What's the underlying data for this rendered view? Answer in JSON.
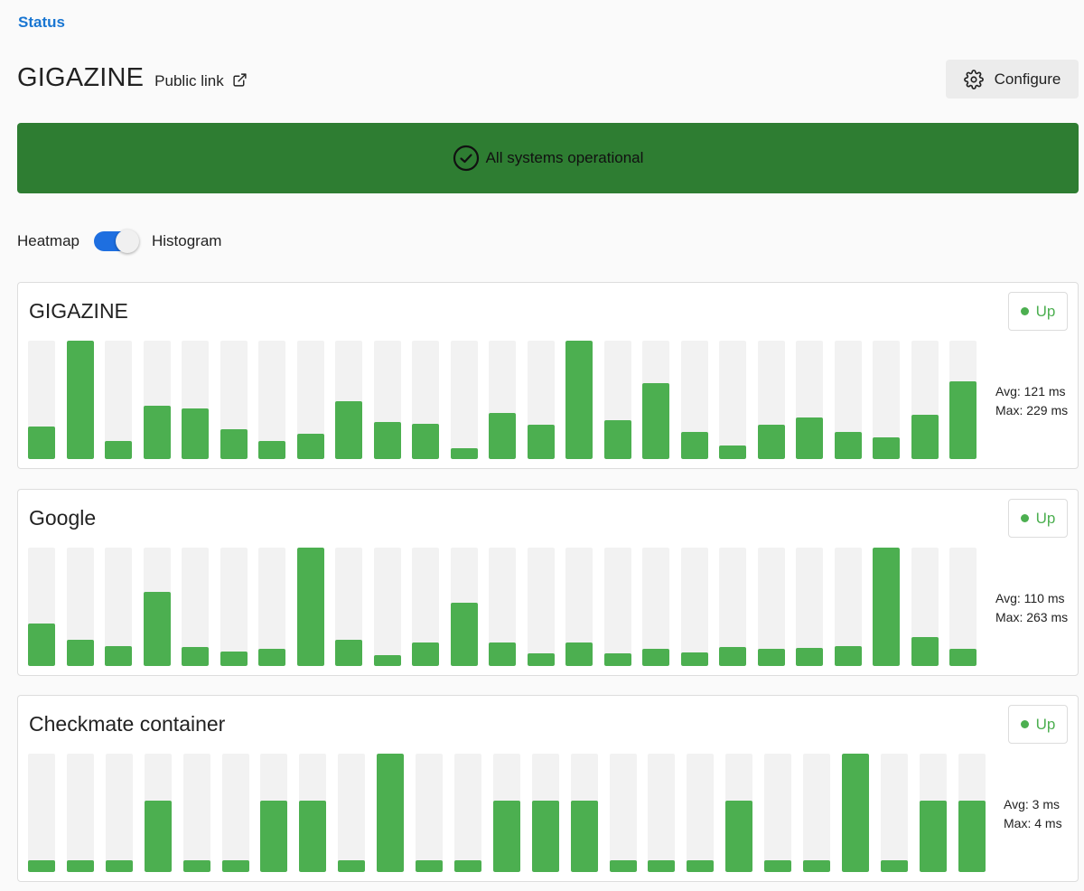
{
  "breadcrumb": "Status",
  "header": {
    "title": "GIGAZINE",
    "public_link": "Public link",
    "configure_label": "Configure"
  },
  "banner": {
    "text": "All systems operational",
    "color": "#2e7d32"
  },
  "view_toggle": {
    "left_label": "Heatmap",
    "right_label": "Histogram",
    "selected": "Histogram"
  },
  "colors": {
    "accent": "#1e6fe0",
    "bar_fill": "#4caf50",
    "bar_track": "#f2f2f2",
    "up": "#4caf50"
  },
  "monitors": [
    {
      "name": "GIGAZINE",
      "status": "Up",
      "avg": "Avg: 121 ms",
      "max": "Max: 229 ms",
      "chart_data": {
        "type": "bar",
        "unit": "ms",
        "ylim": [
          0,
          229
        ],
        "values": [
          63,
          229,
          35,
          103,
          98,
          57,
          35,
          49,
          112,
          72,
          68,
          21,
          89,
          66,
          229,
          75,
          146,
          53,
          27,
          66,
          80,
          52,
          42,
          85,
          151
        ]
      }
    },
    {
      "name": "Google",
      "status": "Up",
      "avg": "Avg: 110 ms",
      "max": "Max: 263 ms",
      "chart_data": {
        "type": "bar",
        "unit": "ms",
        "ylim": [
          0,
          263
        ],
        "values": [
          95,
          58,
          44,
          165,
          42,
          32,
          38,
          263,
          58,
          24,
          52,
          140,
          52,
          28,
          52,
          28,
          38,
          30,
          42,
          38,
          40,
          44,
          263,
          64,
          38
        ]
      }
    },
    {
      "name": "Checkmate container",
      "status": "Up",
      "avg": "Avg: 3 ms",
      "max": "Max: 4 ms",
      "chart_data": {
        "type": "bar",
        "unit": "ms",
        "ylim": [
          0,
          4
        ],
        "values": [
          0.4,
          0.4,
          0.4,
          2.4,
          0.4,
          0.4,
          2.4,
          2.4,
          0.4,
          4,
          0.4,
          0.4,
          2.4,
          2.4,
          2.4,
          0.4,
          0.4,
          0.4,
          2.4,
          0.4,
          0.4,
          4,
          0.4,
          2.4,
          2.4
        ]
      }
    }
  ]
}
